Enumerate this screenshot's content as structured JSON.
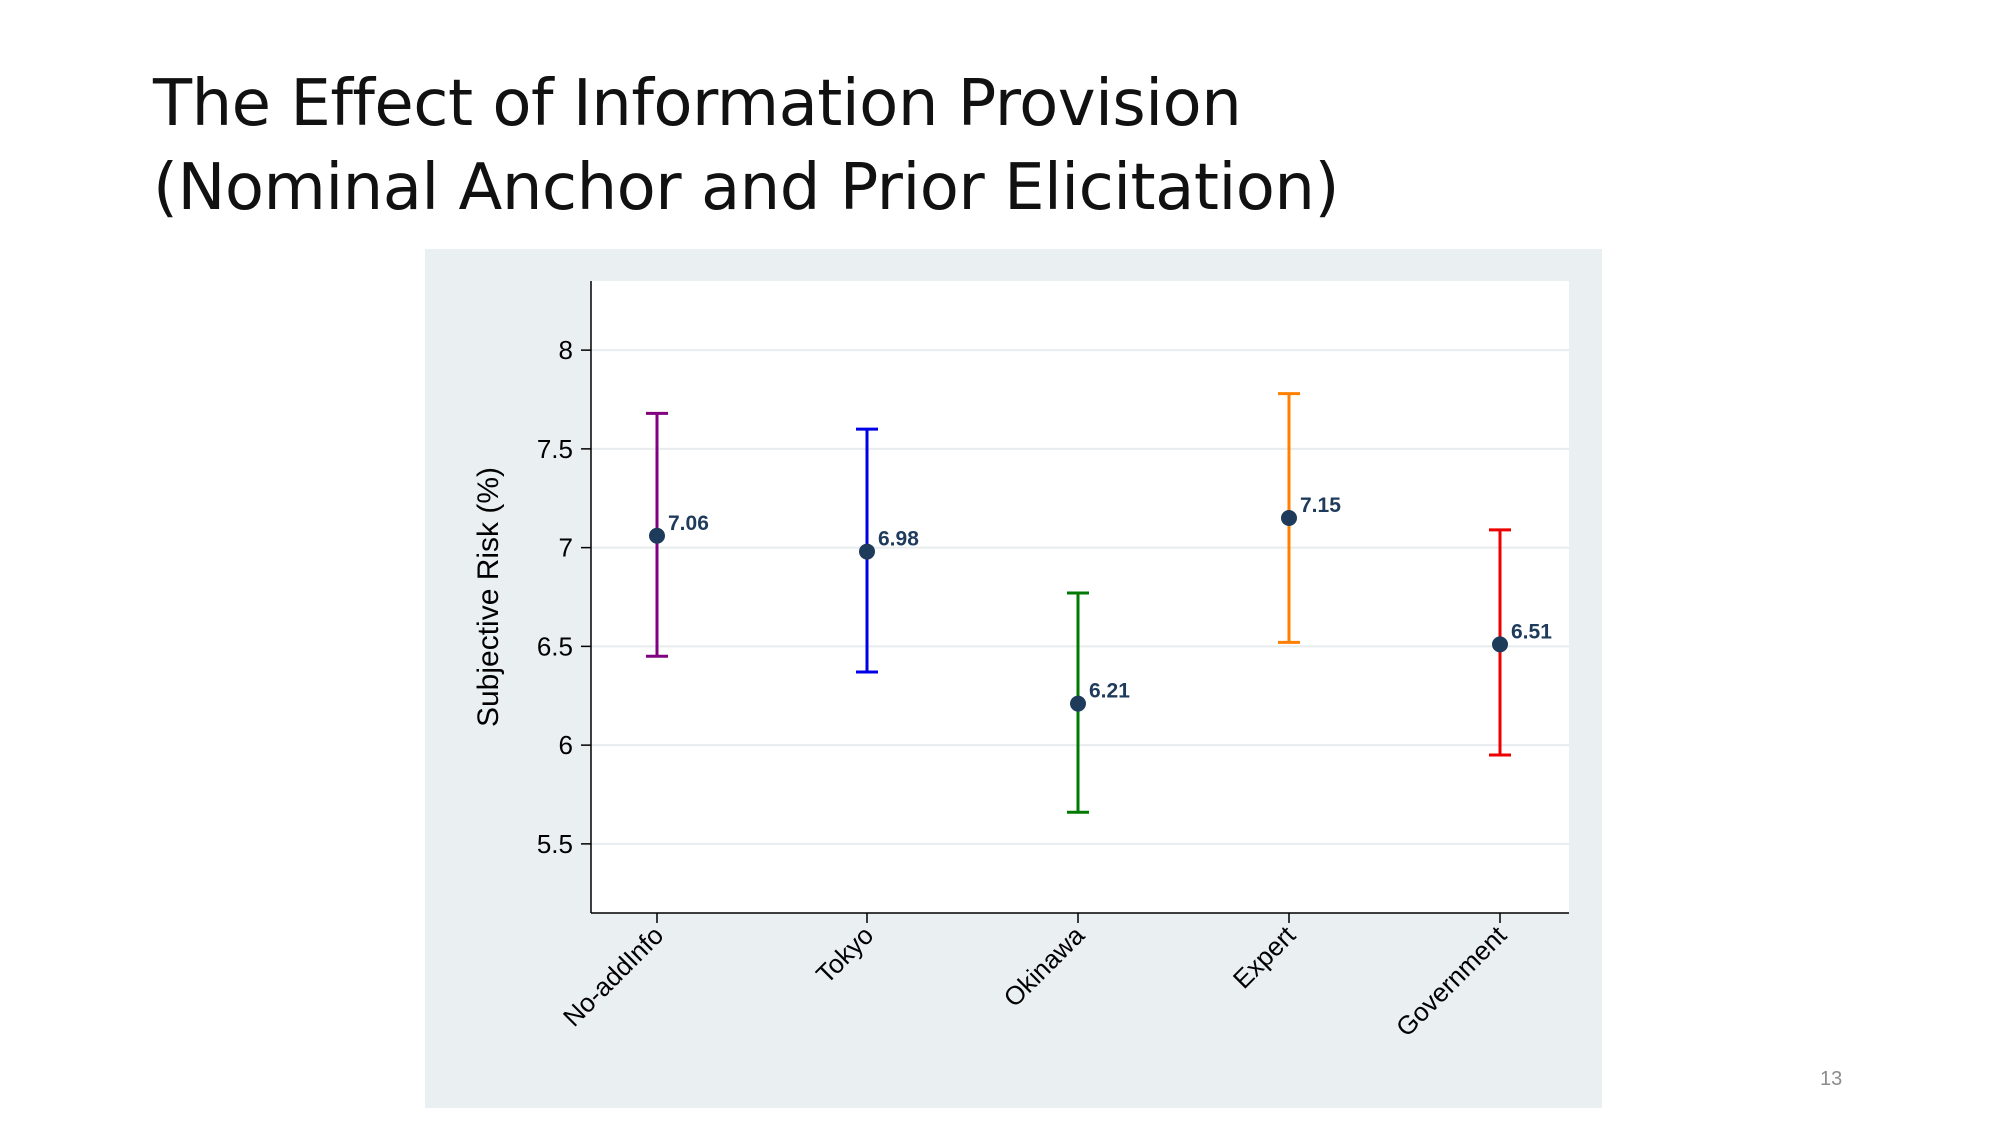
{
  "slide": {
    "title_line1": "The Effect of Information Provision",
    "title_line2": "(Nominal Anchor and Prior Elicitation)",
    "page_number": "13"
  },
  "chart_data": {
    "type": "scatter",
    "subtype": "point-estimate-with-confidence-intervals",
    "ylabel": "Subjective Risk (%)",
    "xlabel": "",
    "ylim": [
      5.15,
      8.35
    ],
    "yticks": [
      5.5,
      6,
      6.5,
      7,
      7.5,
      8
    ],
    "ytick_labels": [
      "5.5",
      "6",
      "6.5",
      "7",
      "7.5",
      "8"
    ],
    "grid": true,
    "categories": [
      "No-addInfo",
      "Tokyo",
      "Okinawa",
      "Expert",
      "Government"
    ],
    "values": [
      7.06,
      6.98,
      6.21,
      7.15,
      6.51
    ],
    "value_labels": [
      "7.06",
      "6.98",
      "6.21",
      "7.15",
      "6.51"
    ],
    "ci_lower": [
      6.45,
      6.37,
      5.66,
      6.52,
      5.95
    ],
    "ci_upper": [
      7.68,
      7.6,
      6.77,
      7.78,
      7.09
    ],
    "colors": [
      "#800080",
      "#0000e6",
      "#007a00",
      "#ff8000",
      "#ee0000"
    ],
    "marker_color": "#1f3b5c",
    "label_color": "#1f3b5c",
    "plot_background": "#ffffff",
    "panel_background": "#eaeff2",
    "grid_color": "#e8ecee"
  }
}
